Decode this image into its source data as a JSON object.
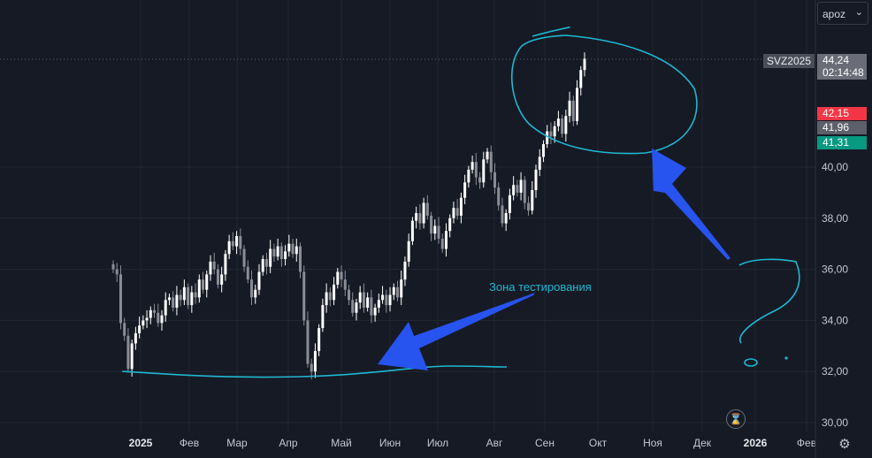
{
  "chart_data": {
    "type": "candlestick",
    "symbol": "SVZ2025",
    "ylim": [
      30,
      45.5
    ],
    "y_ticks": [
      "30,00",
      "32,00",
      "34,00",
      "36,00",
      "38,00",
      "40,00"
    ],
    "x_ticks": [
      {
        "label": "2025",
        "bold": true
      },
      {
        "label": "Фев"
      },
      {
        "label": "Мар"
      },
      {
        "label": "Апр"
      },
      {
        "label": "Май"
      },
      {
        "label": "Июн"
      },
      {
        "label": "Июл"
      },
      {
        "label": "Авг"
      },
      {
        "label": "Сен"
      },
      {
        "label": "Окт"
      },
      {
        "label": "Ноя"
      },
      {
        "label": "Дек"
      },
      {
        "label": "2026",
        "bold": true
      },
      {
        "label": "Фев"
      }
    ],
    "series": [
      {
        "values": [
          36.0,
          35.8,
          33.9,
          33.4,
          32.1,
          33.1,
          33.5,
          33.8,
          34.0,
          34.1,
          34.4,
          34.3,
          33.9,
          34.2,
          34.8,
          34.9,
          34.5,
          35.0,
          34.8,
          35.3,
          34.6,
          35.1,
          34.9,
          35.6,
          35.2,
          35.8,
          36.3,
          36.0,
          35.4,
          35.8,
          36.6,
          37.1,
          36.9,
          37.3,
          36.8,
          36.1,
          35.6,
          34.9,
          35.2,
          35.9,
          36.4,
          36.1,
          36.8,
          36.5,
          36.9,
          36.4,
          36.7,
          37.0,
          36.6,
          36.9,
          35.9,
          34.0,
          32.3,
          32.0,
          32.8,
          33.7,
          34.6,
          35.1,
          34.8,
          35.4,
          35.9,
          35.6,
          35.2,
          34.8,
          34.3,
          34.7,
          35.1,
          34.5,
          34.9,
          34.2,
          34.5,
          34.8,
          35.0,
          34.6,
          35.0,
          35.3,
          34.9,
          35.6,
          36.3,
          37.1,
          37.9,
          38.2,
          37.8,
          38.6,
          38.1,
          37.4,
          37.7,
          37.2,
          36.8,
          37.5,
          38.0,
          38.4,
          38.1,
          38.8,
          39.4,
          39.9,
          40.2,
          39.6,
          39.4,
          40.3,
          40.6,
          39.8,
          39.2,
          38.5,
          37.8,
          38.2,
          38.9,
          39.3,
          39.0,
          39.5,
          38.6,
          38.3,
          39.1,
          39.9,
          40.4,
          40.9,
          41.4,
          41.2,
          41.6,
          41.9,
          41.3,
          42.0,
          42.6,
          41.8,
          43.1,
          43.8,
          44.24
        ]
      }
    ],
    "price_labels": {
      "last_price": "44,24",
      "countdown": "02:14:48",
      "ask": "42,15",
      "mid": "41,96",
      "bid": "41,31"
    },
    "annotation": "Зона тестирования",
    "colors": {
      "background": "#161a25",
      "grid": "#232733",
      "candle_up": "#ffffff",
      "candle_down": "#8a8d95",
      "drawing": "#1fb7d1",
      "arrow": "#2753ee",
      "ask_tag": "#f23645",
      "mid_tag": "#5d606b",
      "bid_tag": "#089981",
      "last_tag": "#6a6d78"
    }
  },
  "ui": {
    "scale_select_value": "apoz",
    "chevron": "⌄",
    "settings_icon": "⚙",
    "timer_icon": "⌛"
  }
}
